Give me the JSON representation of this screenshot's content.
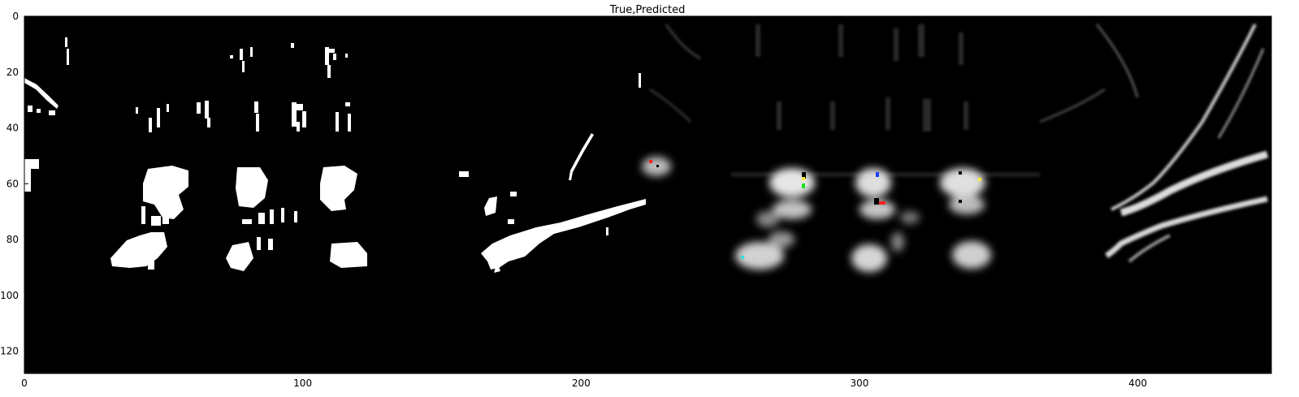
{
  "chart_data": {
    "type": "heatmap",
    "title": "True,Predicted",
    "xlabel": "",
    "ylabel": "",
    "xlim": [
      0,
      448
    ],
    "ylim": [
      128,
      0
    ],
    "xticks": [
      0,
      100,
      200,
      300,
      400
    ],
    "yticks": [
      0,
      20,
      40,
      60,
      80,
      100,
      120
    ],
    "colormap": "gray",
    "panels": [
      {
        "name": "True",
        "x_range": [
          0,
          224
        ],
        "kind": "binary mask"
      },
      {
        "name": "Predicted",
        "x_range": [
          224,
          448
        ],
        "kind": "grayscale heatmap"
      }
    ],
    "grid": false,
    "legend": "none"
  },
  "colors": {
    "background": "#000000",
    "foreground": "#ffffff",
    "keypoint_red": "#ff2020",
    "keypoint_green": "#22dd22",
    "keypoint_blue": "#2040ff",
    "keypoint_yellow": "#ffee33",
    "keypoint_cyan": "#33dddd"
  }
}
